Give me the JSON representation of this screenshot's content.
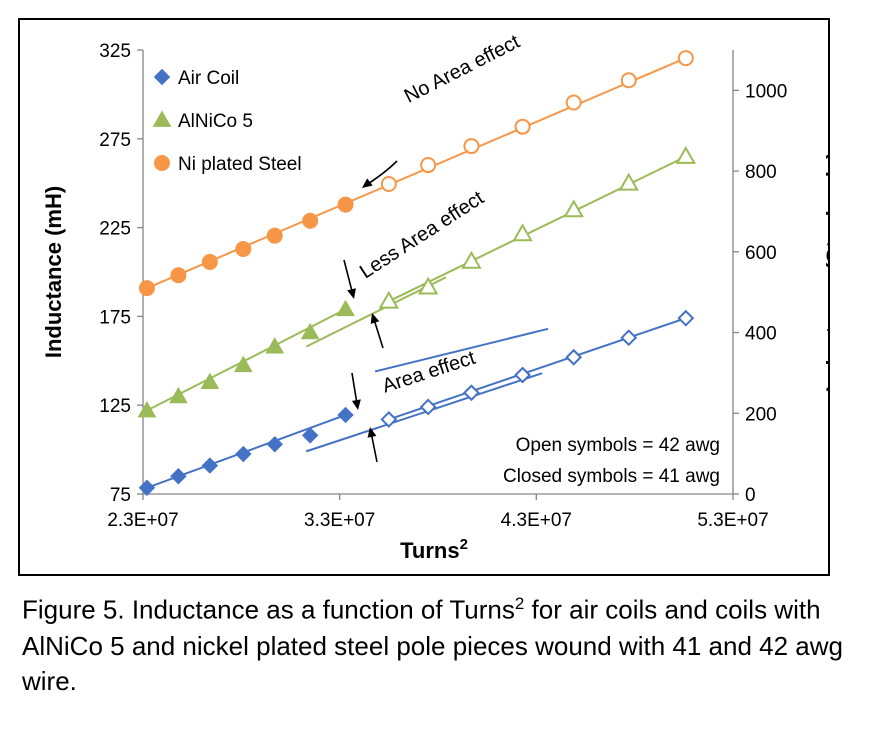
{
  "caption": {
    "prefix": "Figure 5. Inductance as a function of Turns",
    "sup": "2",
    "suffix": " for air coils and coils with AlNiCo 5 and nickel plated steel pole pieces wound with 41 and 42 awg wire."
  },
  "chart_data": {
    "type": "scatter",
    "xlabel": "Turns",
    "xlabel_sup": "2",
    "ylabel": "Inductance (mH)",
    "y2label": "Inductance (Steel only)",
    "xlim": [
      23000000,
      53000000
    ],
    "ylim": [
      75,
      325
    ],
    "y2lim": [
      0,
      1100
    ],
    "xticks": [
      "2.3E+07",
      "3.3E+07",
      "4.3E+07",
      "5.3E+07"
    ],
    "yticks": [
      "75",
      "125",
      "175",
      "225",
      "275",
      "325"
    ],
    "y2ticks": [
      "0",
      "200",
      "400",
      "600",
      "800",
      "1000"
    ],
    "legend": {
      "position": "top-left"
    },
    "colors": {
      "air": "#4472C4",
      "alnico": "#9BBB59",
      "steel": "#F79646"
    },
    "series": [
      {
        "name": "Air Coil",
        "axis": "left",
        "marker": "diamond",
        "points": [
          {
            "x": 23200000,
            "y": 78.5,
            "filled": true
          },
          {
            "x": 24800000,
            "y": 85,
            "filled": true
          },
          {
            "x": 26400000,
            "y": 91,
            "filled": true
          },
          {
            "x": 28100000,
            "y": 97.5,
            "filled": true
          },
          {
            "x": 29700000,
            "y": 103,
            "filled": true
          },
          {
            "x": 31500000,
            "y": 108,
            "filled": true
          },
          {
            "x": 33300000,
            "y": 119.5,
            "filled": true
          },
          {
            "x": 35500000,
            "y": 117,
            "filled": false
          },
          {
            "x": 37500000,
            "y": 124,
            "filled": false
          },
          {
            "x": 39700000,
            "y": 132,
            "filled": false
          },
          {
            "x": 42300000,
            "y": 142,
            "filled": false
          },
          {
            "x": 44900000,
            "y": 152,
            "filled": false
          },
          {
            "x": 47700000,
            "y": 163,
            "filled": false
          },
          {
            "x": 50600000,
            "y": 174,
            "filled": false
          }
        ]
      },
      {
        "name": "AlNiCo 5",
        "axis": "left",
        "marker": "triangle",
        "points": [
          {
            "x": 23200000,
            "y": 122,
            "filled": true
          },
          {
            "x": 24800000,
            "y": 130,
            "filled": true
          },
          {
            "x": 26400000,
            "y": 138,
            "filled": true
          },
          {
            "x": 28100000,
            "y": 147.5,
            "filled": true
          },
          {
            "x": 29700000,
            "y": 158,
            "filled": true
          },
          {
            "x": 31500000,
            "y": 166,
            "filled": true
          },
          {
            "x": 33300000,
            "y": 179,
            "filled": true
          },
          {
            "x": 35500000,
            "y": 183.5,
            "filled": false
          },
          {
            "x": 37500000,
            "y": 191.5,
            "filled": false
          },
          {
            "x": 39700000,
            "y": 206,
            "filled": false
          },
          {
            "x": 42300000,
            "y": 221.5,
            "filled": false
          },
          {
            "x": 44900000,
            "y": 235,
            "filled": false
          },
          {
            "x": 47700000,
            "y": 250,
            "filled": false
          },
          {
            "x": 50600000,
            "y": 265,
            "filled": false
          }
        ]
      },
      {
        "name": "Ni plated Steel",
        "axis": "right",
        "marker": "circle",
        "points": [
          {
            "x": 23200000,
            "y": 510,
            "filled": true
          },
          {
            "x": 24800000,
            "y": 542,
            "filled": true
          },
          {
            "x": 26400000,
            "y": 575,
            "filled": true
          },
          {
            "x": 28100000,
            "y": 607,
            "filled": true
          },
          {
            "x": 29700000,
            "y": 640,
            "filled": true
          },
          {
            "x": 31500000,
            "y": 677,
            "filled": true
          },
          {
            "x": 33300000,
            "y": 717,
            "filled": true
          },
          {
            "x": 35500000,
            "y": 768,
            "filled": false
          },
          {
            "x": 37500000,
            "y": 815,
            "filled": false
          },
          {
            "x": 39700000,
            "y": 862,
            "filled": false
          },
          {
            "x": 42300000,
            "y": 910,
            "filled": false
          },
          {
            "x": 44900000,
            "y": 970,
            "filled": false
          },
          {
            "x": 47700000,
            "y": 1025,
            "filled": false
          },
          {
            "x": 50600000,
            "y": 1080,
            "filled": false
          }
        ]
      }
    ],
    "fit_lines": [
      {
        "series": "Air Coil",
        "axis": "left",
        "from": [
          23200000,
          78.5
        ],
        "to": [
          33300000,
          119.5
        ]
      },
      {
        "series": "Air Coil",
        "axis": "left",
        "from": [
          35500000,
          117
        ],
        "to": [
          50600000,
          174
        ]
      },
      {
        "series": "Air Coil",
        "axis": "left",
        "from": [
          31300000,
          99
        ],
        "to": [
          43300000,
          143
        ]
      },
      {
        "series": "Air Coil",
        "axis": "left",
        "from": [
          34800000,
          144
        ],
        "to": [
          43600000,
          168
        ]
      },
      {
        "series": "AlNiCo 5",
        "axis": "left",
        "from": [
          23200000,
          122
        ],
        "to": [
          33300000,
          179
        ]
      },
      {
        "series": "AlNiCo 5",
        "axis": "left",
        "from": [
          35500000,
          183.5
        ],
        "to": [
          50600000,
          265
        ]
      },
      {
        "series": "AlNiCo 5",
        "axis": "left",
        "from": [
          31300000,
          158
        ],
        "to": [
          38400000,
          197
        ]
      },
      {
        "series": "Ni plated Steel",
        "axis": "right",
        "from": [
          23200000,
          510
        ],
        "to": [
          50600000,
          1080
        ]
      }
    ],
    "annotations": [
      {
        "text": "No Area effect",
        "x": 36500000,
        "y": 295,
        "rotate": -27
      },
      {
        "text": "Less Area effect",
        "x": 34300000,
        "y": 196,
        "rotate": -33
      },
      {
        "text": "Area effect",
        "x": 35300000,
        "y": 132,
        "rotate": -18
      }
    ],
    "notes": [
      "Open symbols = 42 awg",
      "Closed symbols = 41 awg"
    ]
  }
}
